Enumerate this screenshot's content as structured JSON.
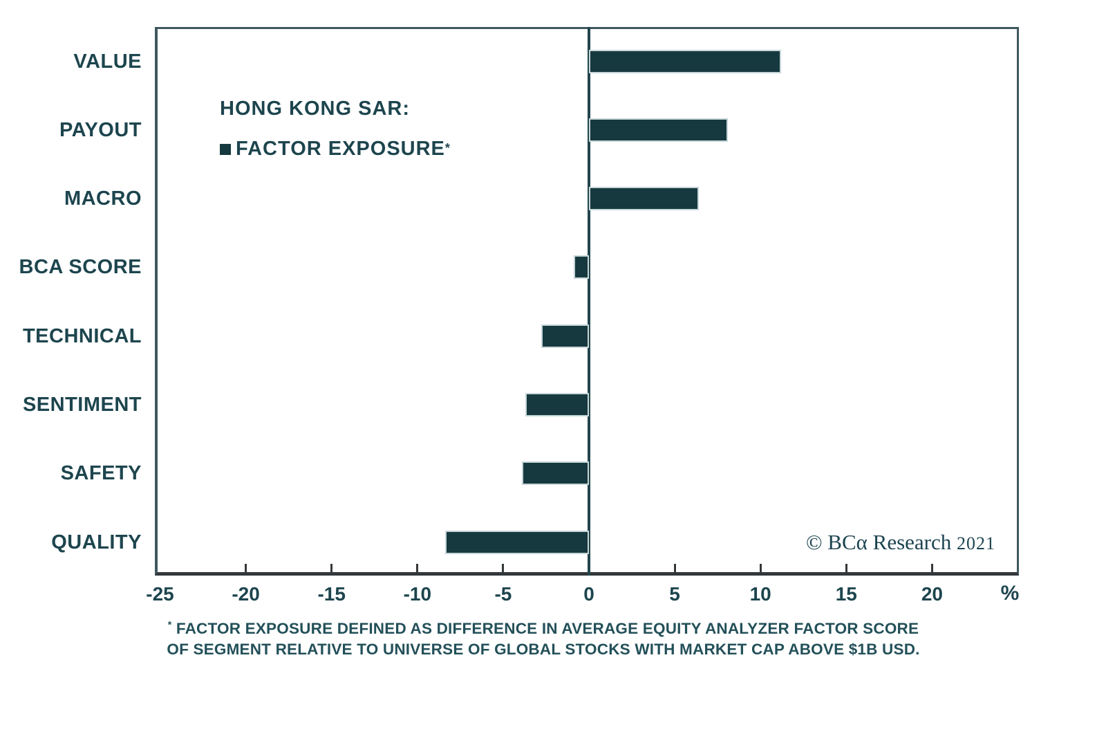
{
  "chart_data": {
    "type": "bar",
    "orientation": "horizontal",
    "title": "HONG KONG SAR:",
    "legend": {
      "marker": "square-swatch",
      "label": "FACTOR EXPOSURE",
      "footnote_marker": "*",
      "position": "upper-left-inside"
    },
    "categories": [
      "VALUE",
      "PAYOUT",
      "MACRO",
      "BCA SCORE",
      "TECHNICAL",
      "SENTIMENT",
      "SAFETY",
      "QUALITY"
    ],
    "values": [
      11.2,
      8.1,
      6.4,
      -0.9,
      -2.8,
      -3.7,
      -3.9,
      -8.4
    ],
    "xlabel": "%",
    "xlim": [
      -25.3,
      25.1
    ],
    "xticks": [
      -25,
      -20,
      -15,
      -10,
      -5,
      0,
      5,
      10,
      15,
      20
    ],
    "grid": false,
    "zero_baseline": true
  },
  "colors": {
    "bar": "#16393f",
    "bar_edge": "#c6d6d8",
    "text": "#1d454e",
    "frame": "#40585e",
    "axis": "#33383b",
    "zero_line": "#23454c",
    "footnote": "#235059",
    "watermark": "#1d4450"
  },
  "watermark": {
    "text": "© BCα Research",
    "year": "2021"
  },
  "footnote": {
    "marker": "*",
    "line1": "FACTOR EXPOSURE DEFINED AS DIFFERENCE IN AVERAGE EQUITY ANALYZER FACTOR SCORE",
    "line2": "OF SEGMENT RELATIVE TO UNIVERSE OF GLOBAL STOCKS WITH MARKET CAP ABOVE $1B USD."
  }
}
